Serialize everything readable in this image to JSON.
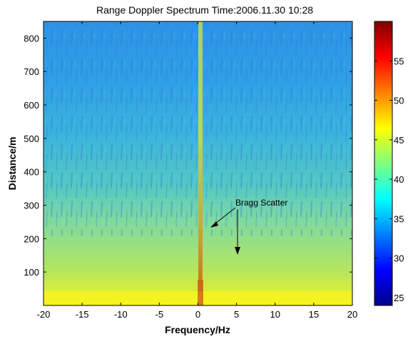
{
  "chart_data": {
    "type": "heatmap",
    "title": "Range Doppler Spectrum  Time:2006.11.30  10:28",
    "xlabel": "Frequency/Hz",
    "ylabel": "Distance/m",
    "xlim": [
      -20,
      20
    ],
    "ylim": [
      0,
      850
    ],
    "xticks": [
      -20,
      -15,
      -10,
      -5,
      0,
      5,
      10,
      15,
      20
    ],
    "yticks": [
      100,
      200,
      300,
      400,
      500,
      600,
      700,
      800
    ],
    "colorbar": {
      "range": [
        24,
        60
      ],
      "ticks": [
        25,
        30,
        35,
        40,
        45,
        50,
        55
      ],
      "colormap": "jet"
    },
    "annotation": {
      "text": "Bragg Scatter",
      "arrows_to": [
        [
          1.2,
          230
        ],
        [
          4.8,
          145
        ]
      ]
    },
    "grid": false,
    "description": "Intensity is highest (~55) along the zero-Doppler line at 0 Hz and near the bottom (0-30 m, ~45-48); background falls from ~40-42 at low range to ~32-35 at high range."
  }
}
